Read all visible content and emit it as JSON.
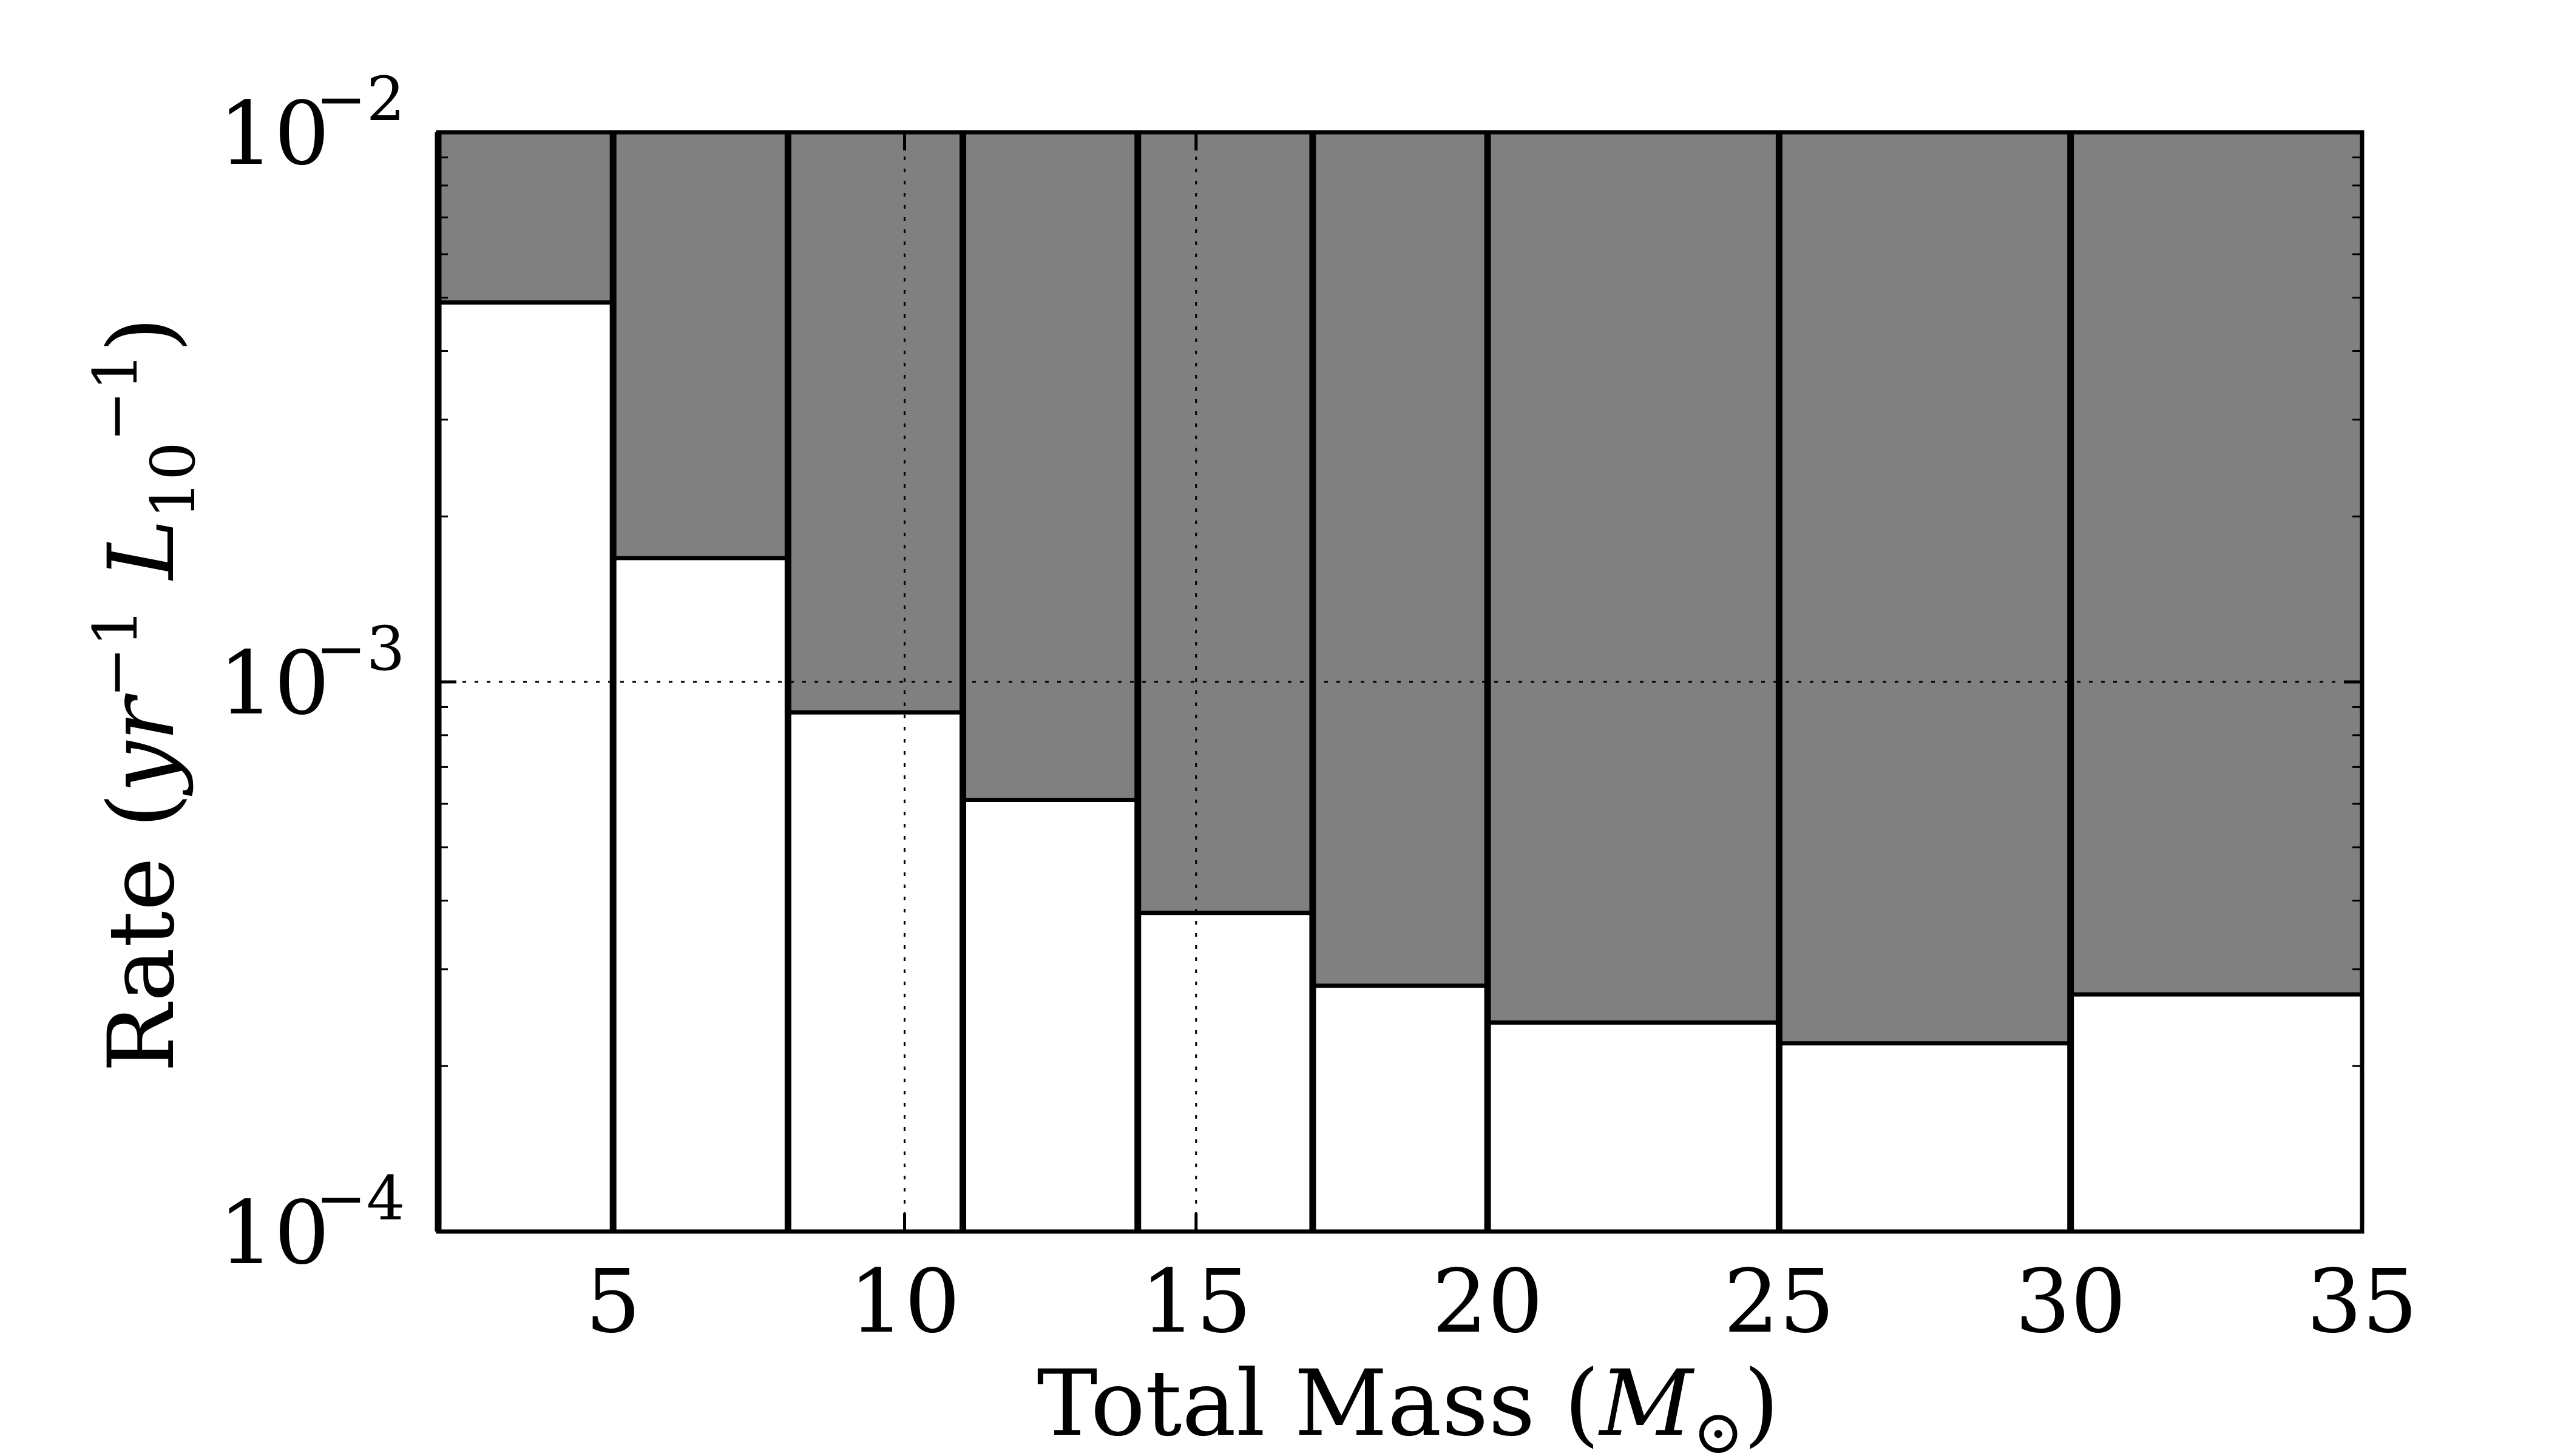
{
  "chart_data": {
    "type": "bar",
    "x_scale": "linear",
    "y_scale": "log",
    "xlim": [
      2,
      35
    ],
    "ylim": [
      0.0001,
      0.01
    ],
    "x_ticks": [
      5,
      10,
      15,
      20,
      25,
      30,
      35
    ],
    "x_tick_labels": [
      "5",
      "10",
      "15",
      "20",
      "25",
      "30",
      "35"
    ],
    "y_ticks": [
      0.0001,
      0.001,
      0.01
    ],
    "y_tick_labels": [
      {
        "base": "10",
        "exp": "−4"
      },
      {
        "base": "10",
        "exp": "−3"
      },
      {
        "base": "10",
        "exp": "−2"
      }
    ],
    "grid": "dotted at x=10, x=15 and y=10^-3",
    "grid_x": [
      10,
      15
    ],
    "grid_y": [
      0.001
    ],
    "xlabel": "Total Mass (M⊙)",
    "ylabel": "Rate (yr−1 L10−1)",
    "bins": [
      {
        "x0": 2,
        "x1": 5,
        "value": 0.0049
      },
      {
        "x0": 5,
        "x1": 8,
        "value": 0.00168
      },
      {
        "x0": 8,
        "x1": 11,
        "value": 0.00088
      },
      {
        "x0": 11,
        "x1": 14,
        "value": 0.00061
      },
      {
        "x0": 14,
        "x1": 17,
        "value": 0.00038
      },
      {
        "x0": 17,
        "x1": 20,
        "value": 0.00028
      },
      {
        "x0": 20,
        "x1": 25,
        "value": 0.00024
      },
      {
        "x0": 25,
        "x1": 30,
        "value": 0.00022
      },
      {
        "x0": 30,
        "x1": 35,
        "value": 0.00027
      }
    ],
    "colors": {
      "excluded": "#808080",
      "allowed": "#ffffff",
      "edge": "#000000"
    }
  }
}
